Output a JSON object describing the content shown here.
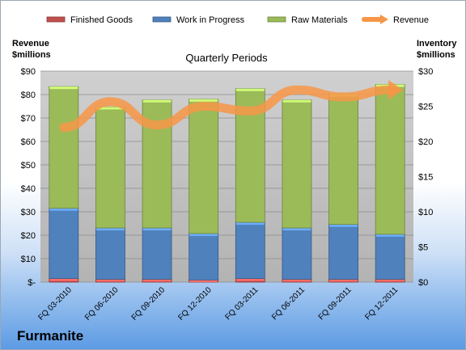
{
  "company": "Furmanite",
  "chart_data": {
    "type": "bar",
    "subtype": "stacked-bar-with-line-overlay",
    "title": "Quarterly Periods",
    "left_axis_label": [
      "Revenue",
      "$millions"
    ],
    "right_axis_label": [
      "Inventory",
      "$millions"
    ],
    "categories": [
      "FQ 03-2010",
      "FQ 06-2010",
      "FQ 09-2010",
      "FQ 12-2010",
      "FQ 03-2011",
      "FQ 06-2011",
      "FQ 09-2011",
      "FQ 12-2011"
    ],
    "left_axis": {
      "min": 0,
      "max": 90,
      "ticks": [
        "$-",
        "$10",
        "$20",
        "$30",
        "$40",
        "$50",
        "$60",
        "$70",
        "$80",
        "$90"
      ]
    },
    "right_axis": {
      "min": 0,
      "max": 30,
      "ticks": [
        "$0",
        "$5",
        "$10",
        "$15",
        "$20",
        "$25",
        "$30"
      ]
    },
    "legend_position": "top",
    "grid": true,
    "series": [
      {
        "name": "Finished Goods",
        "axis": "right",
        "color": "#c0504d",
        "values": [
          0.5,
          0.4,
          0.4,
          0.3,
          0.5,
          0.4,
          0.4,
          0.4
        ]
      },
      {
        "name": "Work in Progress",
        "axis": "right",
        "color": "#4f81bd",
        "values": [
          10.0,
          7.3,
          7.3,
          6.6,
          8.0,
          7.3,
          7.8,
          6.4
        ]
      },
      {
        "name": "Raw Materials",
        "axis": "right",
        "color": "#9bbb59",
        "values": [
          17.3,
          17.2,
          18.2,
          19.1,
          19.0,
          18.2,
          18.5,
          21.3
        ]
      },
      {
        "name": "Revenue",
        "axis": "left",
        "color": "#f79646",
        "type": "line",
        "values": [
          66,
          77,
          67,
          75,
          73,
          82,
          79,
          82
        ]
      }
    ]
  }
}
